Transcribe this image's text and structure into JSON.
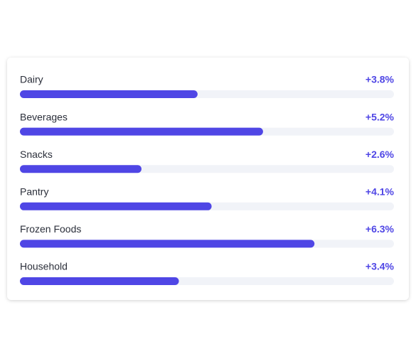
{
  "chart_data": {
    "type": "bar",
    "orientation": "horizontal",
    "categories": [
      "Dairy",
      "Beverages",
      "Snacks",
      "Pantry",
      "Frozen Foods",
      "Household"
    ],
    "values": [
      3.8,
      5.2,
      2.6,
      4.1,
      6.3,
      3.4
    ],
    "value_labels": [
      "+3.8%",
      "+5.2%",
      "+2.6%",
      "+4.1%",
      "+6.3%",
      "+3.4%"
    ],
    "xlim": [
      0,
      8
    ],
    "color": "#4f46e5"
  }
}
